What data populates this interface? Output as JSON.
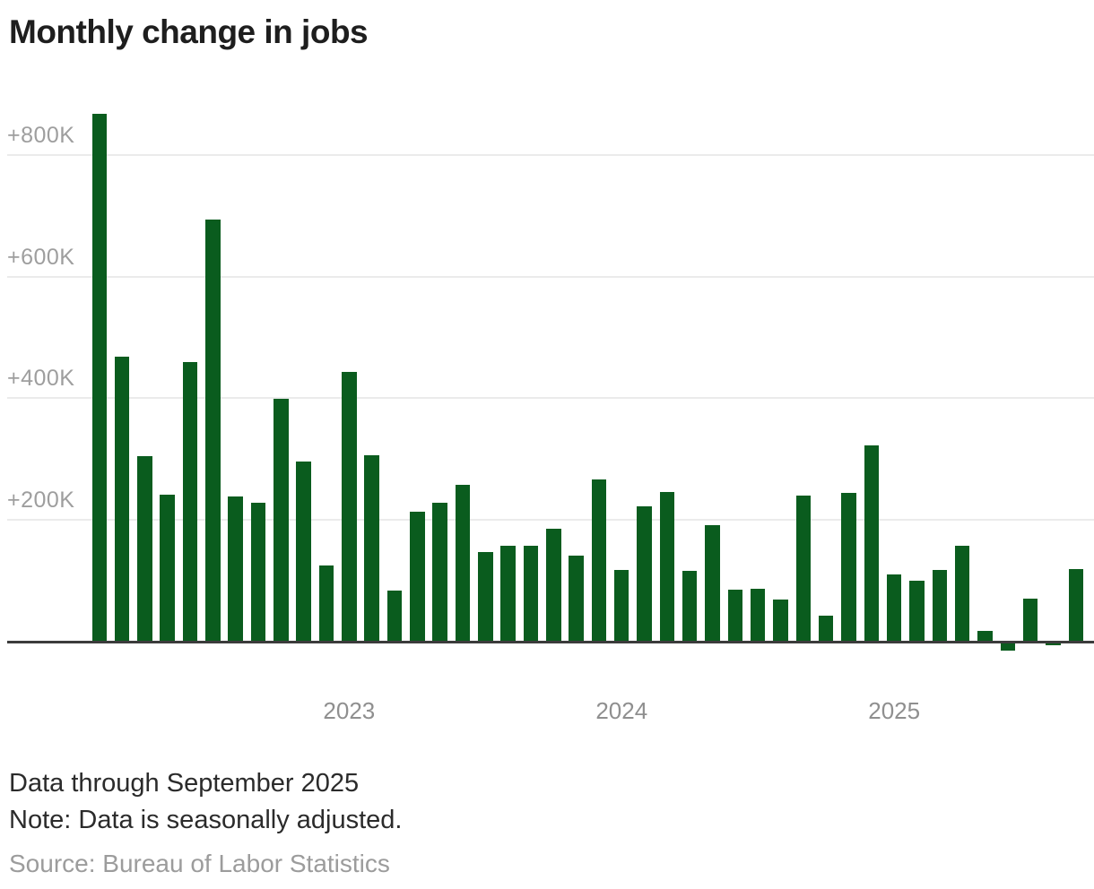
{
  "title": "Monthly change in jobs",
  "chart_data": {
    "type": "bar",
    "title": "Monthly change in jobs",
    "unit": "thousands of jobs",
    "bar_color": "#0a5c1e",
    "grid": "horizontal",
    "legend": "none",
    "ylim": [
      -50,
      900
    ],
    "y_ticks": [
      {
        "label": "+200K",
        "value": 200
      },
      {
        "label": "+400K",
        "value": 400
      },
      {
        "label": "+600K",
        "value": 600
      },
      {
        "label": "+800K",
        "value": 800
      }
    ],
    "x_ticks": [
      {
        "label": "2023",
        "month": "Jan 2023"
      },
      {
        "label": "2024",
        "month": "Jan 2024"
      },
      {
        "label": "2025",
        "month": "Jan 2025"
      }
    ],
    "categories": [
      "Feb 2022",
      "Mar 2022",
      "Apr 2022",
      "May 2022",
      "Jun 2022",
      "Jul 2022",
      "Aug 2022",
      "Sep 2022",
      "Oct 2022",
      "Nov 2022",
      "Dec 2022",
      "Jan 2023",
      "Feb 2023",
      "Mar 2023",
      "Apr 2023",
      "May 2023",
      "Jun 2023",
      "Jul 2023",
      "Aug 2023",
      "Sep 2023",
      "Oct 2023",
      "Nov 2023",
      "Dec 2023",
      "Jan 2024",
      "Feb 2024",
      "Mar 2024",
      "Apr 2024",
      "May 2024",
      "Jun 2024",
      "Jul 2024",
      "Aug 2024",
      "Sep 2024",
      "Oct 2024",
      "Nov 2024",
      "Dec 2024",
      "Jan 2025",
      "Feb 2025",
      "Mar 2025",
      "Apr 2025",
      "May 2025",
      "Jun 2025",
      "Jul 2025",
      "Aug 2025",
      "Sep 2025"
    ],
    "values": [
      867,
      469,
      305,
      242,
      460,
      694,
      239,
      228,
      399,
      296,
      125,
      443,
      306,
      84,
      214,
      228,
      258,
      148,
      157,
      157,
      185,
      141,
      267,
      118,
      222,
      246,
      117,
      192,
      85,
      87,
      69,
      240,
      43,
      244,
      322,
      110,
      100,
      118,
      157,
      18,
      -14,
      71,
      -6,
      119
    ]
  },
  "colors": {
    "bar": "#0a5c1e",
    "gridline": "#ebebeb",
    "axis_line": "#3c3c3c",
    "tick_text": "#9e9e9e",
    "title_text": "#1e1e1e",
    "footer_text": "#2b2b2b",
    "source_text": "#9c9c9c"
  },
  "footer": {
    "line1": "Data through September 2025",
    "line2": "Note: Data is seasonally adjusted.",
    "source": "Source: Bureau of Labor Statistics"
  }
}
